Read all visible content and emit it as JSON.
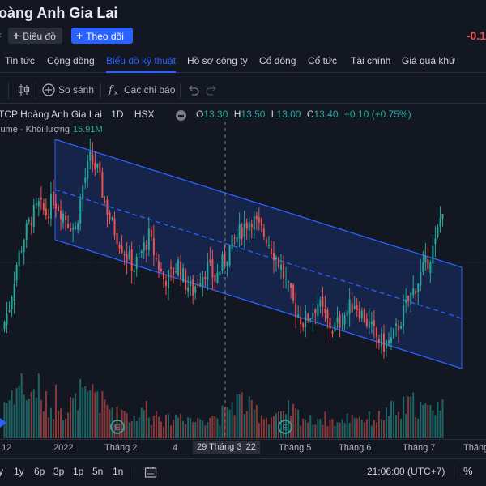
{
  "header": {
    "title": "oàng Anh Gia Lai",
    "chart_button": "Biểu đồ",
    "follow_button": "Theo dõi",
    "price_change": "-0.1"
  },
  "nav": {
    "items": [
      {
        "label": "Tin tức"
      },
      {
        "label": "Cộng đồng"
      },
      {
        "label": "Biểu đồ kỹ thuật",
        "active": true
      },
      {
        "label": "Hồ sơ công ty"
      },
      {
        "label": "Cổ đông"
      },
      {
        "label": "Cổ tức"
      },
      {
        "label": "Tài chính"
      },
      {
        "label": "Giá quá khứ"
      }
    ]
  },
  "toolbar": {
    "compare_label": "So sánh",
    "indicators_label": "Các chỉ báo"
  },
  "legend": {
    "symbol": "TCP Hoàng Anh Gia Lai",
    "interval": "1D",
    "exchange": "HSX",
    "open_key": "O",
    "open": "13.30",
    "high_key": "H",
    "high": "13.50",
    "low_key": "L",
    "low": "13.00",
    "close_key": "C",
    "close": "13.40",
    "change": "+0.10 (+0.75%)",
    "volume_label": "lume - Khối lượng",
    "volume_value": "15.91M"
  },
  "time_axis": {
    "ticks": [
      {
        "label": "12"
      },
      {
        "label": "2022"
      },
      {
        "label": "Tháng 2"
      },
      {
        "label": "4"
      },
      {
        "label": "Tháng 5"
      },
      {
        "label": "Tháng 6"
      },
      {
        "label": "Tháng 7"
      },
      {
        "label": "Tháng"
      }
    ],
    "crosshair_label": "29 Tháng 3 '22"
  },
  "bottom": {
    "ranges": [
      "y",
      "1y",
      "6p",
      "3p",
      "1p",
      "5n",
      "1n"
    ],
    "clock": "21:06:00 (UTC+7)",
    "percent": "%"
  },
  "colors": {
    "background": "#131722",
    "up": "#26a69a",
    "down": "#ef5350",
    "channel": "#2962ff",
    "accent": "#2962ff"
  },
  "chart_data": {
    "type": "candlestick",
    "symbol": "TCP Hoàng Anh Gia Lai",
    "interval": "1D",
    "x_ticks": [
      "12",
      "2022",
      "Tháng 2",
      "4",
      "Tháng 5",
      "Tháng 6",
      "Tháng 7",
      "Tháng"
    ],
    "annotation": "parallel channel (downtrend) with dashed midline",
    "grid": false,
    "close_path": [
      10.2,
      10.8,
      11.9,
      12.6,
      13.1,
      13.4,
      13.2,
      13.6,
      13.3,
      13.0,
      12.8,
      13.9,
      14.6,
      14.3,
      13.5,
      12.9,
      12.5,
      12.1,
      11.8,
      12.2,
      12.6,
      12.0,
      11.5,
      11.6,
      11.9,
      11.4,
      11.2,
      11.6,
      11.8,
      11.5,
      11.9,
      12.3,
      12.6,
      12.9,
      13.1,
      12.8,
      12.6,
      12.2,
      11.8,
      11.2,
      10.7,
      10.4,
      10.6,
      10.9,
      10.5,
      10.2,
      10.4,
      10.7,
      10.9,
      10.6,
      10.3,
      10.0,
      9.8,
      9.9,
      10.3,
      10.8,
      11.2,
      11.6,
      12.0,
      12.4,
      13.4
    ],
    "volume_relative": [
      0.55,
      0.7,
      0.8,
      0.6,
      0.75,
      0.5,
      0.45,
      0.6,
      0.4,
      0.5,
      0.65,
      0.55,
      0.7,
      0.5,
      0.45,
      0.35,
      0.4,
      0.3,
      0.35,
      0.45,
      0.3,
      0.4,
      0.25,
      0.3,
      0.35,
      0.3,
      0.25,
      0.3,
      0.35,
      0.3,
      0.35,
      0.5,
      0.55,
      0.45,
      0.4,
      0.35,
      0.3,
      0.35,
      0.3,
      0.4,
      0.35,
      0.3,
      0.25,
      0.3,
      0.28,
      0.25,
      0.22,
      0.3,
      0.35,
      0.3,
      0.28,
      0.3,
      0.35,
      0.4,
      0.35,
      0.45,
      0.5,
      0.45,
      0.4,
      0.5,
      0.45
    ]
  }
}
